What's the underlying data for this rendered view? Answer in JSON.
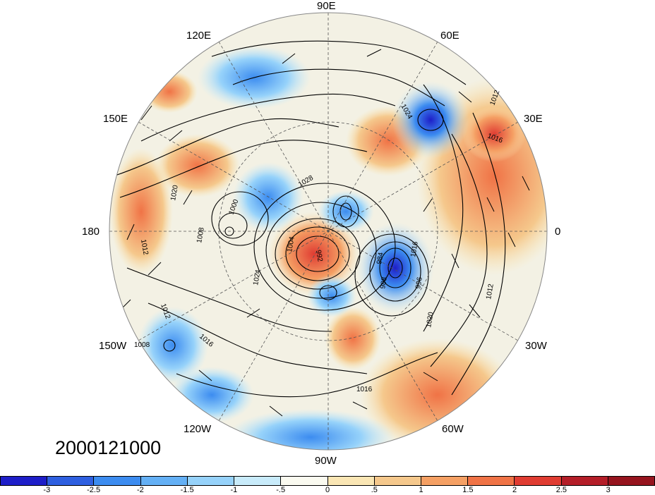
{
  "map": {
    "longitude_labels": {
      "lon_90e": "90E",
      "lon_60e": "60E",
      "lon_30e": "30E",
      "lon_0": "0",
      "lon_30w": "30W",
      "lon_60w": "60W",
      "lon_90w": "90W",
      "lon_120w": "120W",
      "lon_150w": "150W",
      "lon_180": "180",
      "lon_150e": "150E",
      "lon_120e": "120E"
    },
    "contour_labels": [
      "1028",
      "1012",
      "1016",
      "1020",
      "1024",
      "1008",
      "1000",
      "1004",
      "992",
      "984",
      "988",
      "996",
      "1012",
      "1016",
      "1020",
      "1024",
      "1008",
      "1016",
      "1012",
      "1016",
      "1012"
    ],
    "date": "2000121000"
  },
  "colorbar": {
    "colors": [
      "#1e1ec8",
      "#2e5fe0",
      "#3c8cf0",
      "#64b0f5",
      "#96d2fa",
      "#c8ebfa",
      "#fafaf0",
      "#fae6b4",
      "#f5c88c",
      "#f5a064",
      "#f07346",
      "#e03c32",
      "#b41e28",
      "#96141e"
    ],
    "ticks": [
      "-3",
      "-2.5",
      "-2",
      "-1.5",
      "-1",
      "-.5",
      "0",
      ".5",
      "1",
      "1.5",
      "2",
      "2.5",
      "3"
    ]
  }
}
